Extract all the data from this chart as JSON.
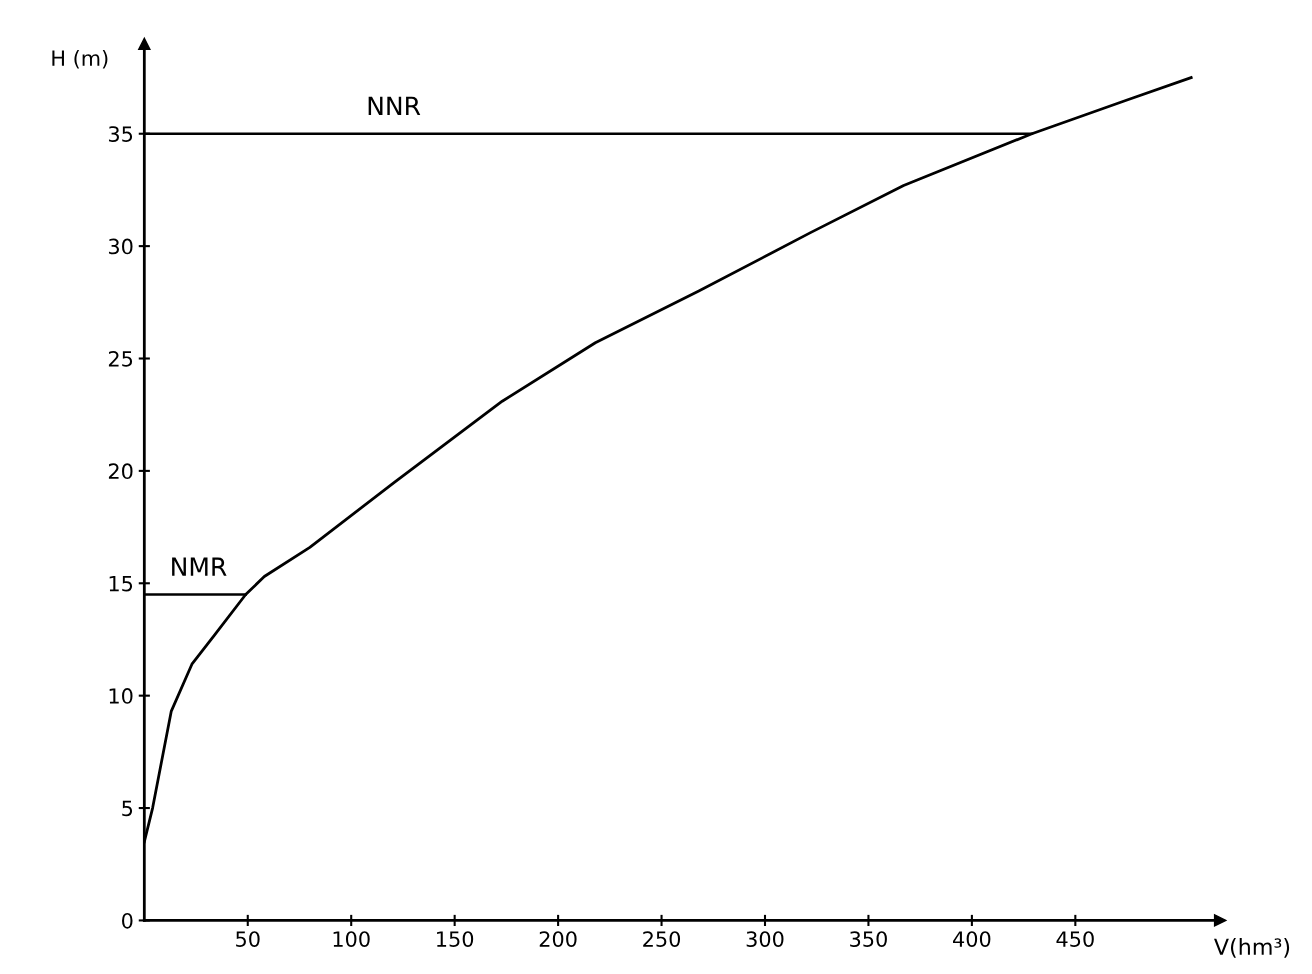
{
  "chart_data": {
    "type": "line",
    "xlabel": "V(hm³)",
    "ylabel": "H (m)",
    "x": [
      0,
      4,
      13,
      23,
      34,
      49,
      58,
      80,
      121,
      173,
      218,
      268,
      322,
      367,
      429,
      475,
      506
    ],
    "series": [
      {
        "color": "#000000",
        "values": [
          3.5,
          5.0,
          9.3,
          11.4,
          12.7,
          14.5,
          15.3,
          16.6,
          19.5,
          23.1,
          25.7,
          28.0,
          30.6,
          32.7,
          35.0,
          36.5,
          37.5
        ]
      }
    ],
    "xlim": [
      0,
      520
    ],
    "ylim": [
      0,
      39
    ],
    "xticks": [
      50,
      100,
      150,
      200,
      250,
      300,
      350,
      400,
      450
    ],
    "yticks": [
      0,
      5,
      10,
      15,
      20,
      25,
      30,
      35
    ],
    "ref_lines": [
      {
        "axis": "y",
        "value": 35,
        "label": "NNR",
        "color": "#000000"
      },
      {
        "axis": "y",
        "value": 14.5,
        "label": "NMR",
        "color": "#000000"
      }
    ],
    "grid": false,
    "legend": false,
    "marker": "none",
    "line_style": "solid"
  }
}
